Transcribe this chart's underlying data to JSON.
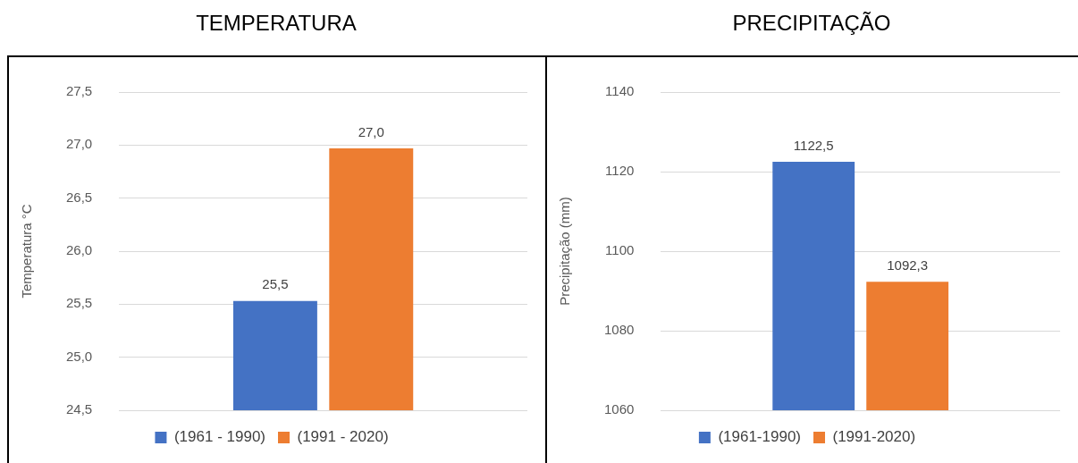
{
  "chart_data": [
    {
      "type": "bar",
      "title": "TEMPERATURA",
      "ylabel": "Temperatura °C",
      "categories": [
        null
      ],
      "series": [
        {
          "name": "(1961 - 1990)",
          "color": "#4472c4",
          "values": [
            25.53
          ],
          "value_labels": [
            "25,5"
          ]
        },
        {
          "name": "(1991 - 2020)",
          "color": "#ed7d31",
          "values": [
            26.97
          ],
          "value_labels": [
            "27,0"
          ]
        }
      ],
      "ylim": [
        24.5,
        27.5
      ],
      "yticks": [
        {
          "value": 24.5,
          "label": "24,5"
        },
        {
          "value": 25,
          "label": "25,0"
        },
        {
          "value": 25.5,
          "label": "25,5"
        },
        {
          "value": 26,
          "label": "26,0"
        },
        {
          "value": 26.5,
          "label": "26,5"
        },
        {
          "value": 27,
          "label": "27,0"
        },
        {
          "value": 27.5,
          "label": "27,5"
        }
      ],
      "grid": "y",
      "legend": "bottom"
    },
    {
      "type": "bar",
      "title": "PRECIPITAÇÃO",
      "ylabel": "Precipitação (mm)",
      "categories": [
        null
      ],
      "series": [
        {
          "name": "(1961-1990)",
          "color": "#4472c4",
          "values": [
            1122.5
          ],
          "value_labels": [
            "1122,5"
          ]
        },
        {
          "name": "(1991-2020)",
          "color": "#ed7d31",
          "values": [
            1092.3
          ],
          "value_labels": [
            "1092,3"
          ]
        }
      ],
      "ylim": [
        1060,
        1140
      ],
      "yticks": [
        1060,
        1080,
        1100,
        1120,
        1140
      ],
      "grid": "y",
      "legend": "bottom"
    }
  ]
}
